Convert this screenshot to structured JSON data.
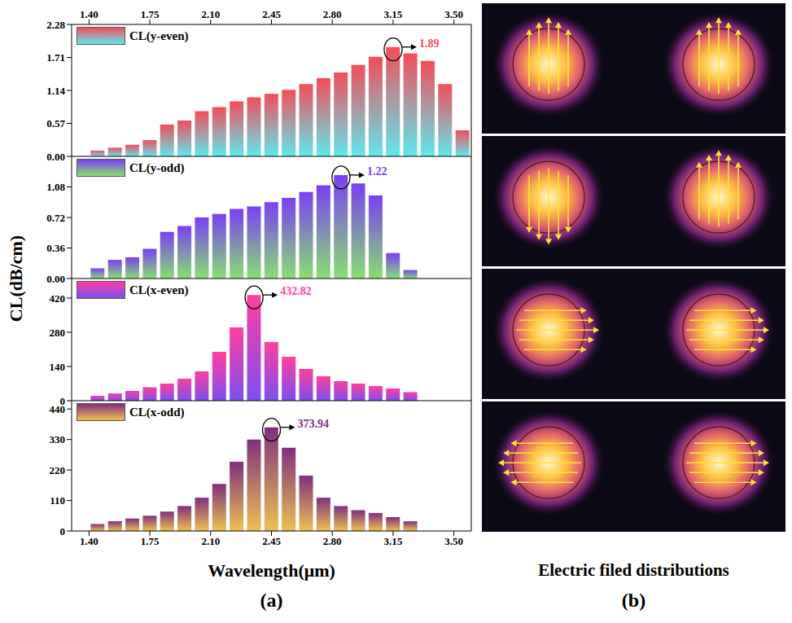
{
  "figure": {
    "ylabel": "CL(dB/cm)",
    "xlabel": "Wavelength(μm)",
    "panel_labels": [
      "(a)",
      "(b)"
    ],
    "right_caption": "Electric filed distributions"
  },
  "chart_data": [
    {
      "type": "bar",
      "series": [
        {
          "name": "CL(y-even)",
          "color": "#f24e5a",
          "values": [
            0.1,
            0.15,
            0.2,
            0.28,
            0.55,
            0.62,
            0.78,
            0.85,
            0.95,
            1.02,
            1.08,
            1.15,
            1.25,
            1.35,
            1.45,
            1.58,
            1.72,
            1.89,
            1.78,
            1.65,
            1.25,
            0.45
          ]
        }
      ],
      "x": [
        1.45,
        1.55,
        1.65,
        1.75,
        1.85,
        1.95,
        2.05,
        2.15,
        2.25,
        2.35,
        2.45,
        2.55,
        2.65,
        2.75,
        2.85,
        2.95,
        3.05,
        3.15,
        3.25,
        3.35,
        3.45,
        3.55
      ],
      "xlim": [
        1.3,
        3.6
      ],
      "xticks": [
        {
          "value": 1.4,
          "label": "1.40"
        },
        1.75,
        {
          "value": 2.1,
          "label": "2.10"
        },
        2.45,
        {
          "value": 2.8,
          "label": "2.80"
        },
        3.15,
        {
          "value": 3.5,
          "label": "3.50"
        }
      ],
      "ylim": [
        0,
        2.28
      ],
      "yticks": [
        {
          "value": 0,
          "label": "0.00"
        },
        0.57,
        1.14,
        1.71,
        2.28
      ],
      "legend": "upper left",
      "annotation": {
        "x": 3.15,
        "y": 1.89,
        "text": "1.89"
      }
    },
    {
      "type": "bar",
      "series": [
        {
          "name": "CL(y-odd)",
          "color": "#7b3ff2",
          "values": [
            0.12,
            0.22,
            0.25,
            0.35,
            0.55,
            0.62,
            0.72,
            0.76,
            0.82,
            0.85,
            0.9,
            0.95,
            1.02,
            1.1,
            1.22,
            1.12,
            0.98,
            0.3,
            0.1
          ]
        }
      ],
      "x": [
        1.45,
        1.55,
        1.65,
        1.75,
        1.85,
        1.95,
        2.05,
        2.15,
        2.25,
        2.35,
        2.45,
        2.55,
        2.65,
        2.75,
        2.85,
        2.95,
        3.05,
        3.15,
        3.25
      ],
      "xlim": [
        1.3,
        3.6
      ],
      "ylim": [
        0,
        1.44
      ],
      "yticks": [
        {
          "value": 0,
          "label": "0.00"
        },
        0.36,
        0.72,
        1.08
      ],
      "tick_labels": "y",
      "legend": "upper left",
      "annotation": {
        "x": 2.85,
        "y": 1.22,
        "text": "1.22"
      }
    },
    {
      "type": "bar",
      "series": [
        {
          "name": "CL(x-even)",
          "color": "#ff3fa0",
          "values": [
            20,
            30,
            40,
            55,
            70,
            90,
            120,
            200,
            300,
            432.82,
            240,
            180,
            130,
            100,
            80,
            70,
            60,
            50,
            35
          ]
        }
      ],
      "x": [
        1.45,
        1.55,
        1.65,
        1.75,
        1.85,
        1.95,
        2.05,
        2.15,
        2.25,
        2.35,
        2.45,
        2.55,
        2.65,
        2.75,
        2.85,
        2.95,
        3.05,
        3.15,
        3.25
      ],
      "xlim": [
        1.3,
        3.6
      ],
      "ylim": [
        0,
        500
      ],
      "yticks": [
        0,
        140,
        280,
        420
      ],
      "tick_labels": "y",
      "legend": "upper left",
      "annotation": {
        "x": 2.35,
        "y": 432.82,
        "text": "432.82"
      }
    },
    {
      "type": "bar",
      "series": [
        {
          "name": "CL(x-odd)",
          "color": "#80307e",
          "values": [
            25,
            35,
            45,
            55,
            70,
            90,
            120,
            170,
            250,
            330,
            373.94,
            300,
            200,
            120,
            90,
            75,
            65,
            50,
            35
          ]
        }
      ],
      "x": [
        1.45,
        1.55,
        1.65,
        1.75,
        1.85,
        1.95,
        2.05,
        2.15,
        2.25,
        2.35,
        2.45,
        2.55,
        2.65,
        2.75,
        2.85,
        2.95,
        3.05,
        3.15,
        3.25
      ],
      "xlim": [
        1.3,
        3.6
      ],
      "xticks": [
        {
          "value": 1.4,
          "label": "1.40"
        },
        1.75,
        {
          "value": 2.1,
          "label": "2.10"
        },
        2.45,
        {
          "value": 2.8,
          "label": "2.80"
        },
        3.15,
        {
          "value": 3.5,
          "label": "3.50"
        }
      ],
      "ylim": [
        0,
        470
      ],
      "yticks": [
        0,
        110,
        220,
        330,
        440
      ],
      "legend": "upper left",
      "annotation": {
        "x": 2.45,
        "y": 373.94,
        "text": "373.94"
      }
    }
  ]
}
